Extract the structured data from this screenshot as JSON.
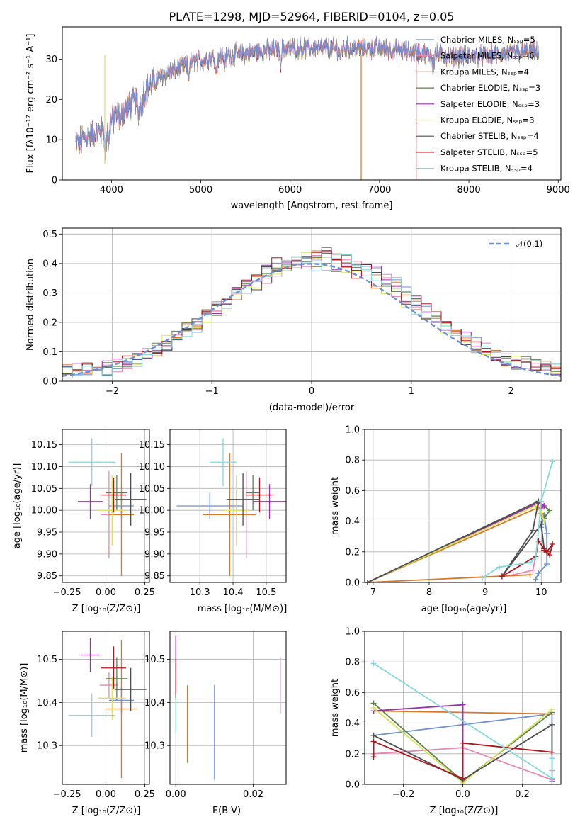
{
  "colors": {
    "chabrier_miles": "#6d8fd6",
    "salpeter_miles": "#e887b4",
    "kroupa_miles": "#d8782a",
    "chabrier_elodie": "#5b7f4a",
    "salpeter_elodie": "#9a2fb0",
    "kroupa_elodie": "#d9e35a",
    "chabrier_stelib": "#4d4d4d",
    "salpeter_stelib": "#b0151b",
    "kroupa_stelib": "#83d8dc"
  },
  "chart_data": [
    {
      "id": "spectrum",
      "type": "line",
      "title": "PLATE=1298, MJD=52964, FIBERID=0104, z=0.05",
      "xlabel": "wavelength [Angstrom, rest frame]",
      "ylabel": "Flux [fλ10⁻¹⁷ erg cm⁻² s⁻¹ A⁻¹]",
      "xlim": [
        3450,
        9030
      ],
      "ylim": [
        0,
        38
      ],
      "xticks": [
        "4000",
        "5000",
        "6000",
        "7000",
        "8000",
        "9000"
      ],
      "yticks": [
        "0",
        "10",
        "20",
        "30"
      ],
      "grid": false,
      "legend_position": "right",
      "legend": [
        "Chabrier MILES, Nₛₛₚ=5",
        "Salpeter MILES, Nₛₛₚ=6",
        "Kroupa MILES, Nₛₛₚ=4",
        "Chabrier ELODIE, Nₛₛₚ=3",
        "Salpeter ELODIE, Nₛₛₚ=3",
        "Kroupa ELODIE, Nₛₛₚ=3",
        "Chabrier STELIB, Nₛₛₚ=4",
        "Salpeter STELIB, Nₛₛₚ=5",
        "Kroupa STELIB, Nₛₛₚ=4"
      ],
      "continuum": {
        "x": [
          3600,
          3700,
          3800,
          3900,
          4000,
          4100,
          4200,
          4300,
          4400,
          4500,
          4600,
          4700,
          4800,
          4900,
          5000,
          5200,
          5400,
          5600,
          5800,
          6000,
          6200,
          6400,
          6600,
          6800,
          7000,
          7200,
          7400,
          7600,
          7800,
          8000,
          8200,
          8400,
          8600,
          8780
        ],
        "y": [
          9,
          10,
          11,
          12,
          14.5,
          16.5,
          18,
          20,
          22.5,
          25,
          26,
          27,
          28,
          29,
          29.5,
          30.5,
          31,
          31.5,
          32,
          32.5,
          32.5,
          32.5,
          32.5,
          32.5,
          32.5,
          32,
          31.5,
          31,
          30.5,
          30.5,
          30.5,
          31,
          31.5,
          31.5
        ]
      }
    },
    {
      "id": "residuals",
      "type": "histogram",
      "xlabel": "(data-model)/error",
      "ylabel": "Normed distribution",
      "xlim": [
        -2.5,
        2.5
      ],
      "ylim": [
        0,
        0.52
      ],
      "xticks": [
        "−2",
        "−1",
        "0",
        "1",
        "2"
      ],
      "yticks": [
        "0.0",
        "0.1",
        "0.2",
        "0.3",
        "0.4",
        "0.5"
      ],
      "grid": true,
      "legend_position": "top-right",
      "reference_curve": "𝒩(0,1)",
      "bin_width": 0.1
    },
    {
      "id": "age_vs_Z",
      "type": "errorbar",
      "xlabel": "Z [log₁₀(Z/Z⊙)]",
      "ylabel": "age  [log₁₀(age/yr)]",
      "xlim": [
        -0.28,
        0.28
      ],
      "ylim": [
        9.835,
        10.185
      ],
      "xticks": [
        "−0.25",
        "0.00",
        "0.25"
      ],
      "yticks": [
        "9.85",
        "9.90",
        "9.95",
        "10.00",
        "10.05",
        "10.10",
        "10.15"
      ],
      "grid": true,
      "points": [
        {
          "x": 0.1,
          "y": 10.01,
          "xerr": 0.08,
          "yerr": 0.03
        },
        {
          "x": 0.02,
          "y": 9.99,
          "xerr": 0.05,
          "yerr": 0.1
        },
        {
          "x": 0.1,
          "y": 9.99,
          "xerr": 0.08,
          "yerr": 0.14
        },
        {
          "x": 0.07,
          "y": 10.04,
          "xerr": 0.07,
          "yerr": 0.04
        },
        {
          "x": -0.1,
          "y": 10.02,
          "xerr": 0.08,
          "yerr": 0.04
        },
        {
          "x": 0.04,
          "y": 10.0,
          "xerr": 0.09,
          "yerr": 0.08
        },
        {
          "x": 0.16,
          "y": 10.025,
          "xerr": 0.1,
          "yerr": 0.06
        },
        {
          "x": 0.05,
          "y": 10.035,
          "xerr": 0.08,
          "yerr": 0.04
        },
        {
          "x": -0.09,
          "y": 10.11,
          "xerr": 0.15,
          "yerr": 0.055
        }
      ]
    },
    {
      "id": "age_vs_mass",
      "type": "errorbar",
      "xlabel": "mass [log₁₀(M/M⊙)]",
      "ylabel": "",
      "xlim": [
        10.21,
        10.56
      ],
      "ylim": [
        9.835,
        10.185
      ],
      "xticks": [
        "10.3",
        "10.4",
        "10.5"
      ],
      "yticks": [
        "9.85",
        "9.90",
        "9.95",
        "10.00",
        "10.05",
        "10.10",
        "10.15"
      ],
      "grid": true,
      "points": [
        {
          "x": 10.33,
          "y": 10.01,
          "xerr": 0.1,
          "yerr": 0.03
        },
        {
          "x": 10.44,
          "y": 9.99,
          "xerr": 0.03,
          "yerr": 0.1
        },
        {
          "x": 10.39,
          "y": 9.99,
          "xerr": 0.08,
          "yerr": 0.14
        },
        {
          "x": 10.46,
          "y": 10.04,
          "xerr": 0.02,
          "yerr": 0.04
        },
        {
          "x": 10.51,
          "y": 10.02,
          "xerr": 0.05,
          "yerr": 0.04
        },
        {
          "x": 10.41,
          "y": 10.0,
          "xerr": 0.04,
          "yerr": 0.08
        },
        {
          "x": 10.43,
          "y": 10.025,
          "xerr": 0.05,
          "yerr": 0.06
        },
        {
          "x": 10.48,
          "y": 10.035,
          "xerr": 0.04,
          "yerr": 0.04
        },
        {
          "x": 10.37,
          "y": 10.11,
          "xerr": 0.04,
          "yerr": 0.055
        }
      ]
    },
    {
      "id": "weight_vs_age",
      "type": "line",
      "xlabel": "age  [log₁₀(age/yr)]",
      "ylabel": "mass weight",
      "xlim": [
        6.85,
        10.35
      ],
      "ylim": [
        0,
        1.0
      ],
      "xticks": [
        "7",
        "8",
        "9",
        "10"
      ],
      "yticks": [
        "0.0",
        "0.2",
        "0.4",
        "0.6",
        "0.8",
        "1.0"
      ],
      "grid": true,
      "series": [
        {
          "x": [
            10.0,
            10.05,
            10.1,
            10.1,
            9.95,
            9.9
          ],
          "y": [
            0.36,
            0.44,
            0.32,
            0.12,
            0.06,
            0.02
          ]
        },
        {
          "x": [
            9.5,
            9.85,
            9.9
          ],
          "y": [
            0.05,
            0.08,
            0.17
          ]
        },
        {
          "x": [
            9.8,
            6.9,
            9.95,
            10.0
          ],
          "y": [
            0.05,
            0.0,
            0.49,
            0.45
          ]
        },
        {
          "x": [
            9.95,
            10.15,
            10.05
          ],
          "y": [
            0.53,
            0.47,
            0.42
          ]
        },
        {
          "x": [
            6.9,
            9.95,
            10.05,
            10.0
          ],
          "y": [
            0.0,
            0.52,
            0.5,
            0.48
          ]
        },
        {
          "x": [
            6.9,
            9.9,
            10.0,
            10.05
          ],
          "y": [
            0.0,
            0.5,
            0.46,
            0.4
          ]
        },
        {
          "x": [
            6.9,
            9.95,
            9.85,
            9.3,
            10.0,
            10.05
          ],
          "y": [
            0.0,
            0.53,
            0.34,
            0.04,
            0.38,
            0.22
          ]
        },
        {
          "x": [
            9.3,
            9.9,
            9.95,
            10.1,
            10.2,
            10.15,
            10.05
          ],
          "y": [
            0.04,
            0.17,
            0.27,
            0.2,
            0.25,
            0.18,
            0.21
          ]
        },
        {
          "x": [
            8.95,
            9.25,
            9.8,
            9.9,
            10.0,
            10.2
          ],
          "y": [
            0.03,
            0.1,
            0.13,
            0.16,
            0.53,
            0.79
          ]
        }
      ]
    },
    {
      "id": "mass_vs_Z",
      "type": "errorbar",
      "xlabel": "Z [log₁₀(Z/Z⊙)]",
      "ylabel": "mass [log₁₀(M/M⊙)]",
      "xlim": [
        -0.28,
        0.28
      ],
      "ylim": [
        10.21,
        10.565
      ],
      "xticks": [
        "−0.25",
        "0.00",
        "0.25"
      ],
      "yticks": [
        "10.3",
        "10.4",
        "10.5"
      ],
      "grid": true,
      "points": [
        {
          "x": 0.1,
          "y": 10.405,
          "xerr": 0.08,
          "yerr": 0.03
        },
        {
          "x": 0.02,
          "y": 10.44,
          "xerr": 0.06,
          "yerr": 0.03
        },
        {
          "x": 0.1,
          "y": 10.385,
          "xerr": 0.1,
          "yerr": 0.16
        },
        {
          "x": 0.07,
          "y": 10.455,
          "xerr": 0.07,
          "yerr": 0.05
        },
        {
          "x": -0.1,
          "y": 10.51,
          "xerr": 0.06,
          "yerr": 0.04
        },
        {
          "x": 0.04,
          "y": 10.41,
          "xerr": 0.09,
          "yerr": 0.05
        },
        {
          "x": 0.16,
          "y": 10.43,
          "xerr": 0.1,
          "yerr": 0.05
        },
        {
          "x": 0.05,
          "y": 10.48,
          "xerr": 0.08,
          "yerr": 0.05
        },
        {
          "x": -0.09,
          "y": 10.37,
          "xerr": 0.15,
          "yerr": 0.05
        }
      ]
    },
    {
      "id": "mass_vs_ebv",
      "type": "errorbar",
      "xlabel": "E(B-V)",
      "ylabel": "",
      "xlim": [
        -0.0015,
        0.0285
      ],
      "ylim": [
        10.21,
        10.565
      ],
      "xticks": [
        "0.00",
        "0.02"
      ],
      "yticks": [
        "10.3",
        "10.4",
        "10.5"
      ],
      "grid": true,
      "points": [
        {
          "x": 0.01,
          "y": 10.33,
          "xerr": 0,
          "yerr": 0.11
        },
        {
          "x": 0.027,
          "y": 10.44,
          "xerr": 0,
          "yerr": 0.065
        },
        {
          "x": 0.003,
          "y": 10.35,
          "xerr": 0,
          "yerr": 0.09
        },
        {
          "x": 0.0,
          "y": 10.46,
          "xerr": 0,
          "yerr": 0.02
        },
        {
          "x": 0.0,
          "y": 10.51,
          "xerr": 0,
          "yerr": 0.045
        },
        {
          "x": 0.0,
          "y": 10.41,
          "xerr": 0,
          "yerr": 0.03
        },
        {
          "x": 0.0,
          "y": 10.43,
          "xerr": 0,
          "yerr": 0.02
        },
        {
          "x": 0.0,
          "y": 10.46,
          "xerr": 0,
          "yerr": 0.04
        },
        {
          "x": 0.0,
          "y": 10.37,
          "xerr": 0,
          "yerr": 0.04
        }
      ]
    },
    {
      "id": "weight_vs_Z",
      "type": "line",
      "xlabel": "Z [log₁₀(Z/Z⊙)]",
      "ylabel": "mass weight",
      "xlim": [
        -0.33,
        0.33
      ],
      "ylim": [
        0,
        1.0
      ],
      "xticks": [
        "−0.2",
        "0.0",
        "0.2"
      ],
      "yticks": [
        "0.0",
        "0.2",
        "0.4",
        "0.6",
        "0.8",
        "1.0"
      ],
      "grid": true,
      "series": [
        {
          "x": [
            -0.3,
            0.3,
            0.3
          ],
          "y": [
            0.32,
            0.46,
            0.02
          ]
        },
        {
          "x": [
            -0.3,
            0.0,
            0.3,
            0.3
          ],
          "y": [
            0.2,
            0.24,
            0.03,
            0.09
          ]
        },
        {
          "x": [
            -0.3,
            0.3
          ],
          "y": [
            0.48,
            0.46
          ]
        },
        {
          "x": [
            -0.3,
            0.0,
            0.3
          ],
          "y": [
            0.53,
            0.02,
            0.47
          ]
        },
        {
          "x": [
            -0.3,
            0.0,
            0.0
          ],
          "y": [
            0.48,
            0.52,
            0.02
          ]
        },
        {
          "x": [
            -0.3,
            0.0,
            0.3
          ],
          "y": [
            0.5,
            0.01,
            0.49
          ]
        },
        {
          "x": [
            -0.3,
            0.0,
            0.3,
            0.3
          ],
          "y": [
            0.32,
            0.03,
            0.39,
            0.21
          ]
        },
        {
          "x": [
            -0.3,
            -0.3,
            0.0,
            0.0,
            0.3
          ],
          "y": [
            0.18,
            0.28,
            0.04,
            0.27,
            0.21
          ]
        },
        {
          "x": [
            -0.3,
            0.3,
            0.3
          ],
          "y": [
            0.79,
            0.04,
            0.17
          ]
        }
      ]
    }
  ]
}
